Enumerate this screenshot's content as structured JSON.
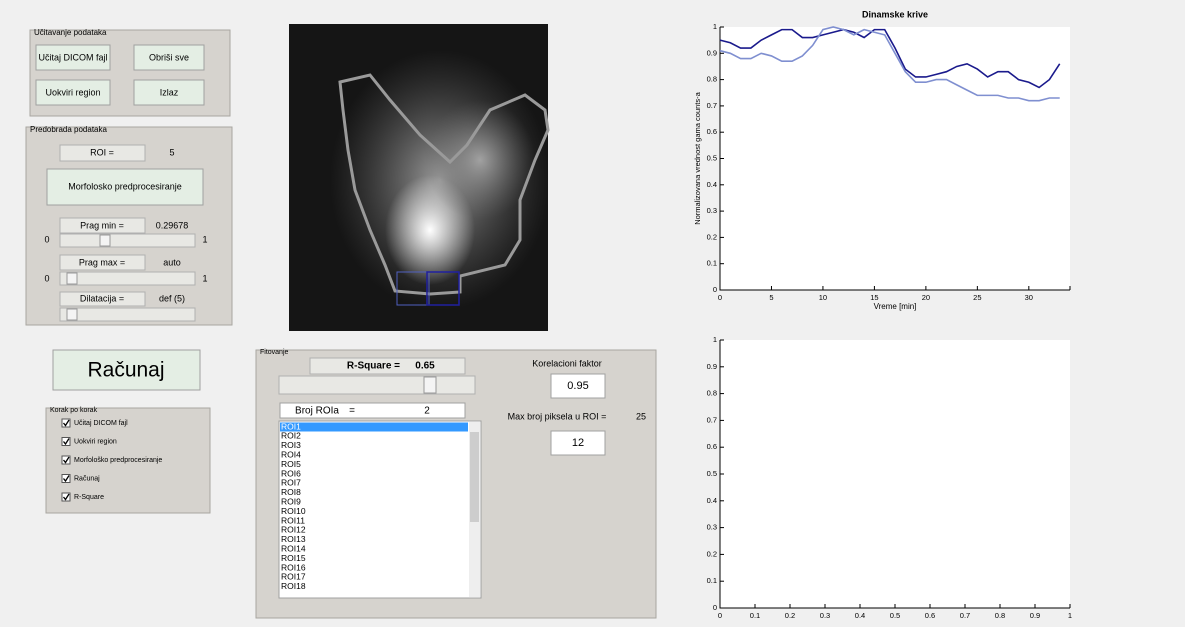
{
  "load_panel": {
    "title": "Učitavanje podataka",
    "buttons": [
      "Učitaj DICOM fajl",
      "Obriši sve",
      "Uokviri region",
      "Izlaz"
    ]
  },
  "pre_panel": {
    "title": "Predobrada podataka",
    "roi_label": "ROI =",
    "roi_value": "5",
    "morph_button": "Morfolosko predprocesiranje",
    "prag_min_label": "Prag min =",
    "prag_min_value": "0.29678",
    "slider_min": "0",
    "slider_max": "1",
    "prag_max_label": "Prag max =",
    "prag_max_value": "auto",
    "slider2_min": "0",
    "slider2_max": "1",
    "dilat_label": "Dilatacija =",
    "dilat_value": "def (5)"
  },
  "compute_button": "Računaj",
  "steps_panel": {
    "title": "Korak po korak",
    "items": [
      "Učitaj DICOM fajl",
      "Uokviri region",
      "Morfološko predprocesiranje",
      "Računaj",
      "R-Square"
    ]
  },
  "fit_panel": {
    "title": "Fitovanje",
    "rsq_label": "R-Square =",
    "rsq_value": "0.65",
    "roi_count_label": "Broj ROIa",
    "roi_count_eq": "=",
    "roi_count_value": "2",
    "roi_list": [
      "ROI1",
      "ROI2",
      "ROI3",
      "ROI4",
      "ROI5",
      "ROI6",
      "ROI7",
      "ROI8",
      "ROI9",
      "ROI10",
      "ROI11",
      "ROI12",
      "ROI13",
      "ROI14",
      "ROI15",
      "ROI16",
      "ROI17",
      "ROI18"
    ],
    "corr_label": "Korelacioni faktor",
    "corr_value": "0.95",
    "max_pix_label": "Max broj piksela u ROI =",
    "max_pix_value": "25",
    "pix_value": "12"
  },
  "chart_data": [
    {
      "type": "line",
      "title": "Dinamske krive",
      "xlabel": "Vreme [min]",
      "ylabel": "Normalizovana vrednost gama counts-a",
      "x": [
        0,
        1,
        2,
        3,
        4,
        5,
        6,
        7,
        8,
        9,
        10,
        11,
        12,
        13,
        14,
        15,
        16,
        17,
        18,
        19,
        20,
        21,
        22,
        23,
        24,
        25,
        26,
        27,
        28,
        29,
        30,
        31,
        32,
        33
      ],
      "xlim": [
        0,
        34
      ],
      "xticks": [
        0,
        5,
        10,
        15,
        20,
        25,
        30
      ],
      "ylim": [
        0,
        1
      ],
      "yticks": [
        0,
        0.1,
        0.2,
        0.3,
        0.4,
        0.5,
        0.6,
        0.7,
        0.8,
        0.9,
        1
      ],
      "series": [
        {
          "color": "#1a1a8c",
          "values": [
            0.95,
            0.94,
            0.92,
            0.92,
            0.95,
            0.97,
            0.99,
            0.99,
            0.96,
            0.96,
            0.97,
            0.98,
            0.99,
            0.98,
            0.96,
            0.99,
            0.99,
            0.92,
            0.84,
            0.81,
            0.81,
            0.82,
            0.83,
            0.85,
            0.86,
            0.84,
            0.81,
            0.83,
            0.83,
            0.8,
            0.79,
            0.77,
            0.8,
            0.86
          ]
        },
        {
          "color": "#7f8fd0",
          "values": [
            0.91,
            0.9,
            0.88,
            0.88,
            0.9,
            0.89,
            0.87,
            0.87,
            0.89,
            0.93,
            0.99,
            1.0,
            0.99,
            0.97,
            0.99,
            0.98,
            0.97,
            0.9,
            0.83,
            0.79,
            0.79,
            0.8,
            0.8,
            0.78,
            0.76,
            0.74,
            0.74,
            0.74,
            0.73,
            0.73,
            0.72,
            0.72,
            0.73,
            0.73
          ]
        }
      ]
    },
    {
      "type": "line",
      "xlim": [
        0,
        1
      ],
      "xticks": [
        0,
        0.1,
        0.2,
        0.3,
        0.4,
        0.5,
        0.6,
        0.7,
        0.8,
        0.9,
        1
      ],
      "ylim": [
        0,
        1
      ],
      "yticks": [
        0,
        0.1,
        0.2,
        0.3,
        0.4,
        0.5,
        0.6,
        0.7,
        0.8,
        0.9,
        1
      ],
      "series": []
    }
  ]
}
